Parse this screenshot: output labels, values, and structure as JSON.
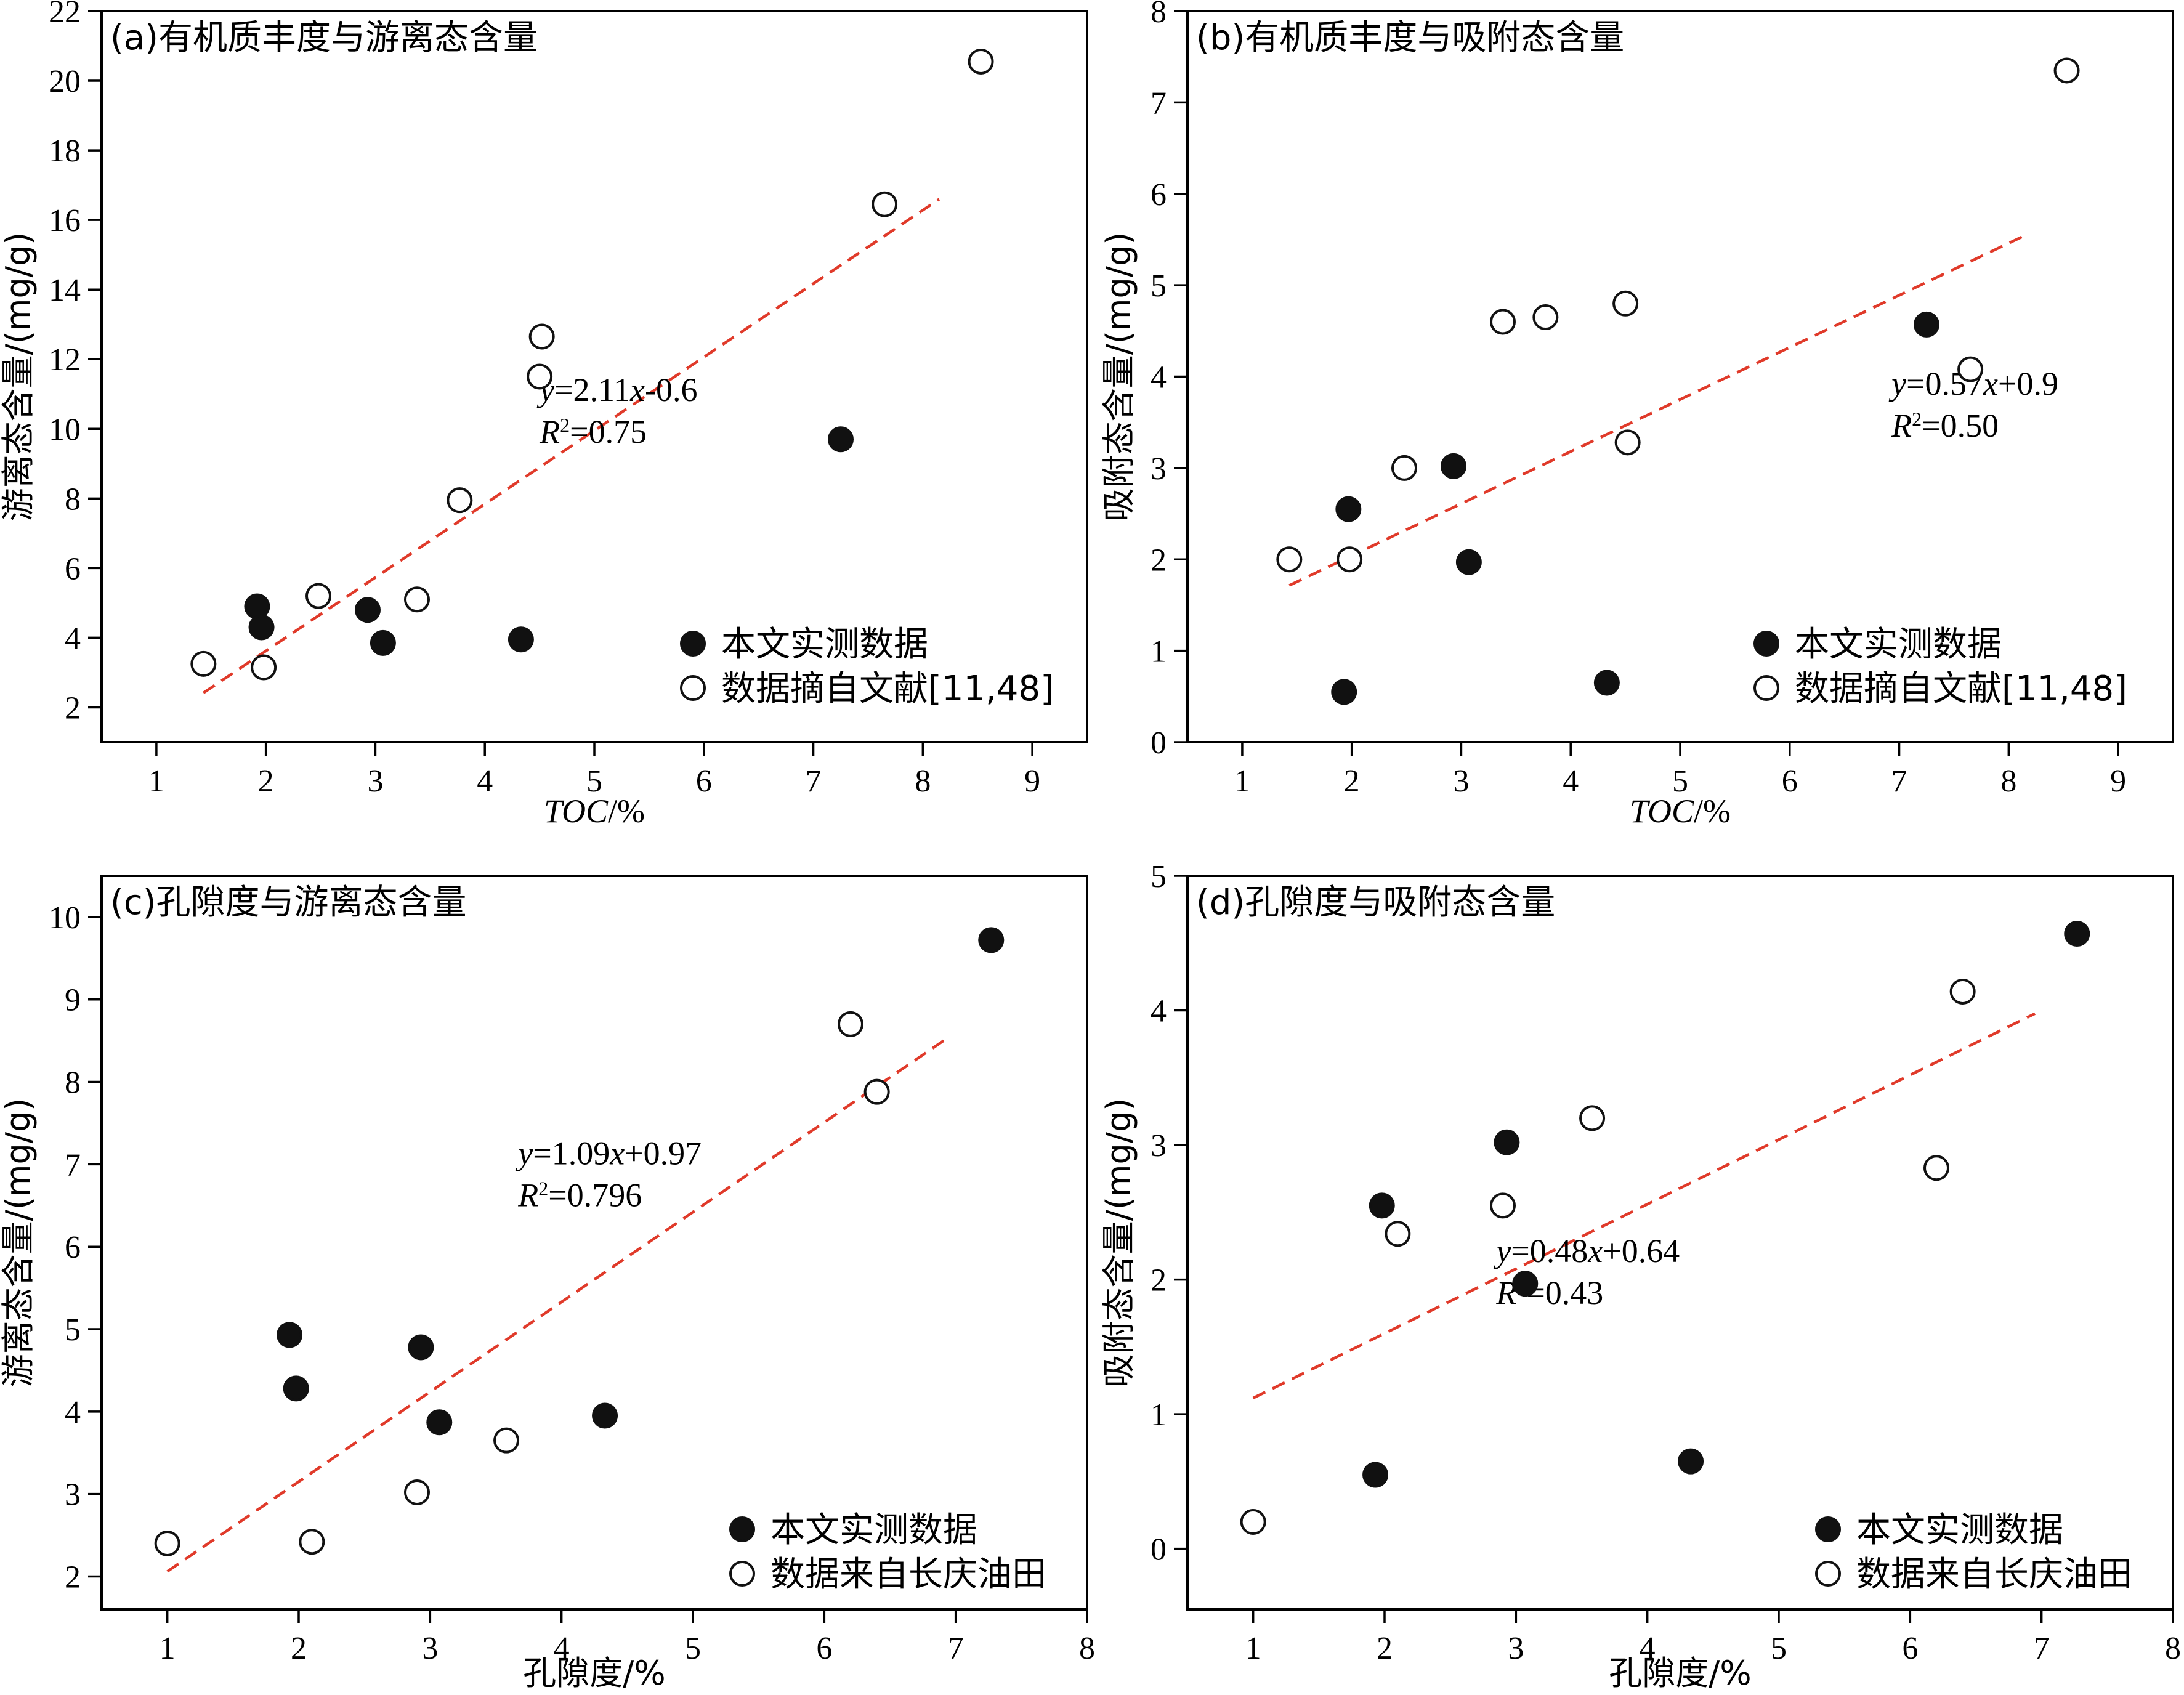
{
  "chart_data": [
    {
      "type": "scatter",
      "title": "(a)有机质丰度与游离态含量",
      "xlabel": "TOC/%",
      "xlabel_italic_part": "TOC",
      "ylabel": "游离态含量/(mg/g)",
      "xlim": [
        0.5,
        9.5
      ],
      "ylim": [
        1,
        22
      ],
      "xticks": [
        1,
        2,
        3,
        4,
        5,
        6,
        7,
        8,
        9
      ],
      "yticks": [
        2,
        4,
        6,
        8,
        10,
        12,
        14,
        16,
        18,
        20,
        22
      ],
      "legend_position": "bottom-right",
      "series": [
        {
          "name": "本文实测数据",
          "marker": "filled",
          "x": [
            1.92,
            1.96,
            2.93,
            3.07,
            4.33,
            7.25
          ],
          "y": [
            4.9,
            4.3,
            4.8,
            3.85,
            3.95,
            9.7
          ]
        },
        {
          "name": "数据摘自文献[11,48]",
          "marker": "open",
          "x": [
            1.43,
            1.98,
            2.48,
            3.38,
            3.77,
            4.5,
            4.52,
            7.65,
            8.53
          ],
          "y": [
            3.25,
            3.15,
            5.2,
            5.1,
            7.95,
            11.5,
            12.65,
            16.45,
            20.55
          ]
        }
      ],
      "fit": {
        "equation_y": "y",
        "equation_x": "x",
        "equation_rest1": "=2.11",
        "equation_rest2": "-0.6",
        "r2_label": "R",
        "r2_value": "=0.75",
        "slope": 2.11,
        "intercept": -0.6,
        "x_range": [
          1.43,
          8.15
        ],
        "label_x": 4.5,
        "label_y": 10.8
      }
    },
    {
      "type": "scatter",
      "title": "(b)有机质丰度与吸附态含量",
      "xlabel": "TOC/%",
      "xlabel_italic_part": "TOC",
      "ylabel": "吸附态含量/(mg/g)",
      "xlim": [
        0.5,
        9.5
      ],
      "ylim": [
        0,
        8
      ],
      "xticks": [
        1,
        2,
        3,
        4,
        5,
        6,
        7,
        8,
        9
      ],
      "yticks": [
        0,
        1,
        2,
        3,
        4,
        5,
        6,
        7,
        8
      ],
      "legend_position": "bottom-right",
      "series": [
        {
          "name": "本文实测数据",
          "marker": "filled",
          "x": [
            1.93,
            1.97,
            2.93,
            3.07,
            4.33,
            7.25
          ],
          "y": [
            0.55,
            2.55,
            3.02,
            1.97,
            0.65,
            4.57
          ]
        },
        {
          "name": "数据摘自文献[11,48]",
          "marker": "open",
          "x": [
            1.43,
            1.98,
            2.48,
            3.38,
            3.77,
            4.5,
            4.52,
            7.65,
            8.53
          ],
          "y": [
            2.0,
            2.0,
            3.0,
            4.6,
            4.65,
            4.8,
            3.28,
            4.08,
            7.35
          ]
        }
      ],
      "fit": {
        "equation_y": "y",
        "equation_x": "x",
        "equation_rest1": "=0.57",
        "equation_rest2": "+0.9",
        "r2_label": "R",
        "r2_value": "=0.50",
        "slope": 0.57,
        "intercept": 0.9,
        "x_range": [
          1.43,
          8.15
        ],
        "label_x": 6.93,
        "label_y": 3.8
      }
    },
    {
      "type": "scatter",
      "title": "(c)孔隙度与游离态含量",
      "xlabel": "孔隙度/%",
      "ylabel": "游离态含量/(mg/g)",
      "xlim": [
        0.5,
        8
      ],
      "ylim": [
        1.6,
        10.5
      ],
      "xticks": [
        1,
        2,
        3,
        4,
        5,
        6,
        7,
        8
      ],
      "yticks": [
        2,
        3,
        4,
        5,
        6,
        7,
        8,
        9,
        10
      ],
      "legend_position": "bottom-right",
      "series": [
        {
          "name": "本文实测数据",
          "marker": "filled",
          "x": [
            1.93,
            1.98,
            2.93,
            3.07,
            4.33,
            7.27
          ],
          "y": [
            4.93,
            4.28,
            4.78,
            3.87,
            3.95,
            9.72
          ]
        },
        {
          "name": "数据来自长庆油田",
          "marker": "open",
          "x": [
            1.0,
            2.1,
            2.9,
            3.58,
            6.2,
            6.4
          ],
          "y": [
            2.4,
            2.42,
            3.02,
            3.65,
            8.7,
            7.88
          ]
        }
      ],
      "fit": {
        "equation_y": "y",
        "equation_x": "x",
        "equation_rest1": "=1.09",
        "equation_rest2": "+0.97",
        "r2_label": "R",
        "r2_value": "=0.796",
        "slope": 1.09,
        "intercept": 0.97,
        "x_range": [
          1.0,
          6.95
        ],
        "label_x": 3.67,
        "label_y": 7.0
      }
    },
    {
      "type": "scatter",
      "title": "(d)孔隙度与吸附态含量",
      "xlabel": "孔隙度/%",
      "ylabel": "吸附态含量/(mg/g)",
      "xlim": [
        0.5,
        8
      ],
      "ylim": [
        -0.45,
        5
      ],
      "xticks": [
        1,
        2,
        3,
        4,
        5,
        6,
        7,
        8
      ],
      "yticks": [
        0,
        1,
        2,
        3,
        4,
        5
      ],
      "legend_position": "bottom-right",
      "series": [
        {
          "name": "本文实测数据",
          "marker": "filled",
          "x": [
            1.93,
            1.98,
            2.93,
            3.07,
            4.33,
            7.27
          ],
          "y": [
            0.55,
            2.55,
            3.02,
            1.97,
            0.65,
            4.57
          ]
        },
        {
          "name": "数据来自长庆油田",
          "marker": "open",
          "x": [
            1.0,
            2.1,
            2.9,
            3.58,
            6.2,
            6.4
          ],
          "y": [
            0.2,
            2.34,
            2.55,
            3.2,
            2.83,
            4.14
          ]
        }
      ],
      "fit": {
        "equation_y": "y",
        "equation_x": "x",
        "equation_rest1": "=0.48",
        "equation_rest2": "+0.64",
        "r2_label": "R",
        "r2_value": "=0.43",
        "slope": 0.48,
        "intercept": 0.64,
        "x_range": [
          1.0,
          6.95
        ],
        "label_x": 2.85,
        "label_y": 2.13
      }
    }
  ],
  "colors": {
    "fit_line": "#e03a2a",
    "marker": "#111111",
    "background": "#ffffff"
  }
}
